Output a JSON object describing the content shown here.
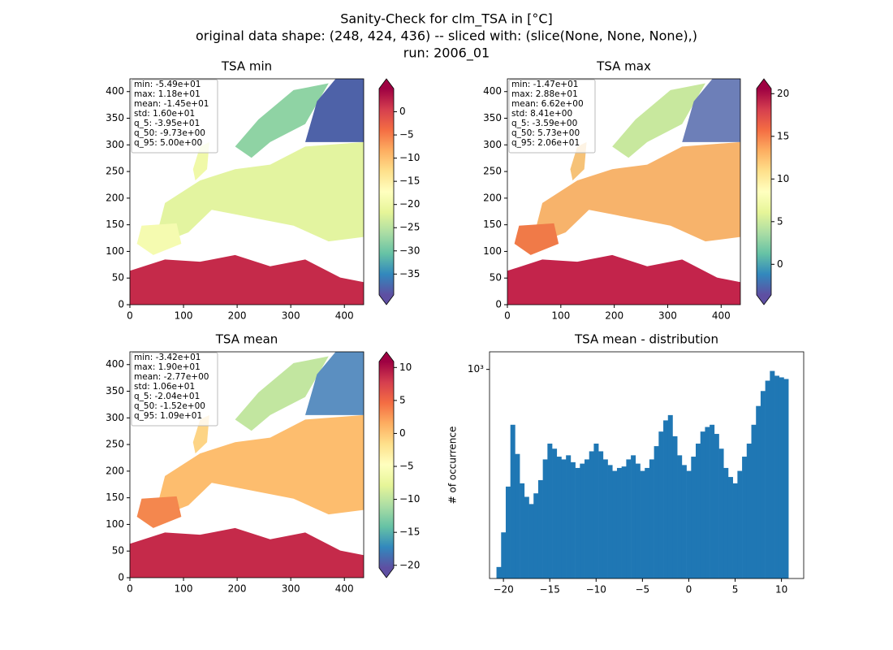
{
  "suptitle": [
    "Sanity-Check for clm_TSA in [°C]",
    "original data shape: (248, 424, 436) -- sliced with: (slice(None, None, None),)",
    "run: 2006_01"
  ],
  "chart_data": [
    {
      "type": "image",
      "title": "TSA min",
      "xlim": [
        0,
        436
      ],
      "xticks": [
        0,
        100,
        200,
        300,
        400
      ],
      "ylim": [
        0,
        424
      ],
      "yticks": [
        0,
        50,
        100,
        150,
        200,
        250,
        300,
        350,
        400
      ],
      "stats": [
        "min: -5.49e+01",
        "max: 1.18e+01",
        "mean: -1.45e+01",
        "std: 1.60e+01",
        "q_5: -3.95e+01",
        "q_50: -9.73e+00",
        "q_95: 5.00e+00"
      ],
      "colorbar": {
        "lim": [
          -39.5,
          5.0
        ],
        "ticks": [
          {
            "value": -35,
            "label": "−35"
          },
          {
            "value": -30,
            "label": "−30"
          },
          {
            "value": -25,
            "label": "−25"
          },
          {
            "value": -20,
            "label": "−20"
          },
          {
            "value": -15,
            "label": "−15"
          },
          {
            "value": -10,
            "label": "−10"
          },
          {
            "value": -5,
            "label": "−5"
          },
          0
        ]
      }
    },
    {
      "type": "image",
      "title": "TSA max",
      "xlim": [
        0,
        436
      ],
      "xticks": [
        0,
        100,
        200,
        300,
        400
      ],
      "ylim": [
        0,
        424
      ],
      "yticks": [
        0,
        50,
        100,
        150,
        200,
        250,
        300,
        350,
        400
      ],
      "stats": [
        "min: -1.47e+01",
        "max: 2.88e+01",
        "mean: 6.62e+00",
        "std: 8.41e+00",
        "q_5: -3.59e+00",
        "q_50: 5.73e+00",
        "q_95: 2.06e+01"
      ],
      "colorbar": {
        "lim": [
          -3.59,
          20.6
        ],
        "ticks": [
          0,
          5,
          10,
          15,
          20
        ]
      }
    },
    {
      "type": "image",
      "title": "TSA mean",
      "xlim": [
        0,
        436
      ],
      "xticks": [
        0,
        100,
        200,
        300,
        400
      ],
      "ylim": [
        0,
        424
      ],
      "yticks": [
        0,
        50,
        100,
        150,
        200,
        250,
        300,
        350,
        400
      ],
      "stats": [
        "min: -3.42e+01",
        "max: 1.90e+01",
        "mean: -2.77e+00",
        "std: 1.06e+01",
        "q_5: -2.04e+01",
        "q_50: -1.52e+00",
        "q_95: 1.09e+01"
      ],
      "colorbar": {
        "lim": [
          -20.4,
          10.9
        ],
        "ticks": [
          {
            "value": -20,
            "label": "−20"
          },
          {
            "value": -15,
            "label": "−15"
          },
          {
            "value": -10,
            "label": "−10"
          },
          {
            "value": -5,
            "label": "−5"
          },
          0,
          5,
          10
        ]
      }
    },
    {
      "type": "histogram",
      "title": "TSA mean - distribution",
      "ylabel": "# of occurrence",
      "color": "#1f77b4",
      "log_y": true,
      "bins": [
        -20.75,
        -20.25,
        -19.75,
        -19.25,
        -18.75,
        -18.25,
        -17.75,
        -17.25,
        -16.75,
        -16.25,
        -15.75,
        -15.25,
        -14.75,
        -14.25,
        -13.75,
        -13.25,
        -12.75,
        -12.25,
        -11.75,
        -11.25,
        -10.75,
        -10.25,
        -9.75,
        -9.25,
        -8.75,
        -8.25,
        -7.75,
        -7.25,
        -6.75,
        -6.25,
        -5.75,
        -5.25,
        -4.75,
        -4.25,
        -3.75,
        -3.25,
        -2.75,
        -2.25,
        -1.75,
        -1.25,
        -0.75,
        -0.25,
        0.25,
        0.75,
        1.25,
        1.75,
        2.25,
        2.75,
        3.25,
        3.75,
        4.25,
        4.75,
        5.25,
        5.75,
        6.25,
        6.75,
        7.25,
        7.75,
        8.25,
        8.75,
        9.25,
        9.75,
        10.25,
        10.75
      ],
      "values": [
        280,
        350,
        470,
        700,
        580,
        480,
        440,
        420,
        450,
        490,
        560,
        620,
        600,
        570,
        560,
        575,
        550,
        530,
        545,
        560,
        590,
        620,
        590,
        560,
        540,
        520,
        530,
        535,
        560,
        575,
        545,
        520,
        530,
        560,
        610,
        670,
        720,
        745,
        650,
        575,
        540,
        520,
        570,
        620,
        670,
        690,
        700,
        660,
        600,
        530,
        500,
        480,
        520,
        570,
        620,
        700,
        790,
        870,
        930,
        990,
        960,
        950,
        940
      ],
      "xlim": [
        -21.5,
        12.4
      ],
      "xticks": [
        {
          "value": -20,
          "label": "−20"
        },
        {
          "value": -15,
          "label": "−15"
        },
        {
          "value": -10,
          "label": "−10"
        },
        {
          "value": -5,
          "label": "−5"
        },
        0,
        5,
        10
      ],
      "ylim": [
        260,
        1120
      ],
      "yticks": [
        {
          "value": 1000,
          "label": "10³"
        }
      ]
    }
  ]
}
